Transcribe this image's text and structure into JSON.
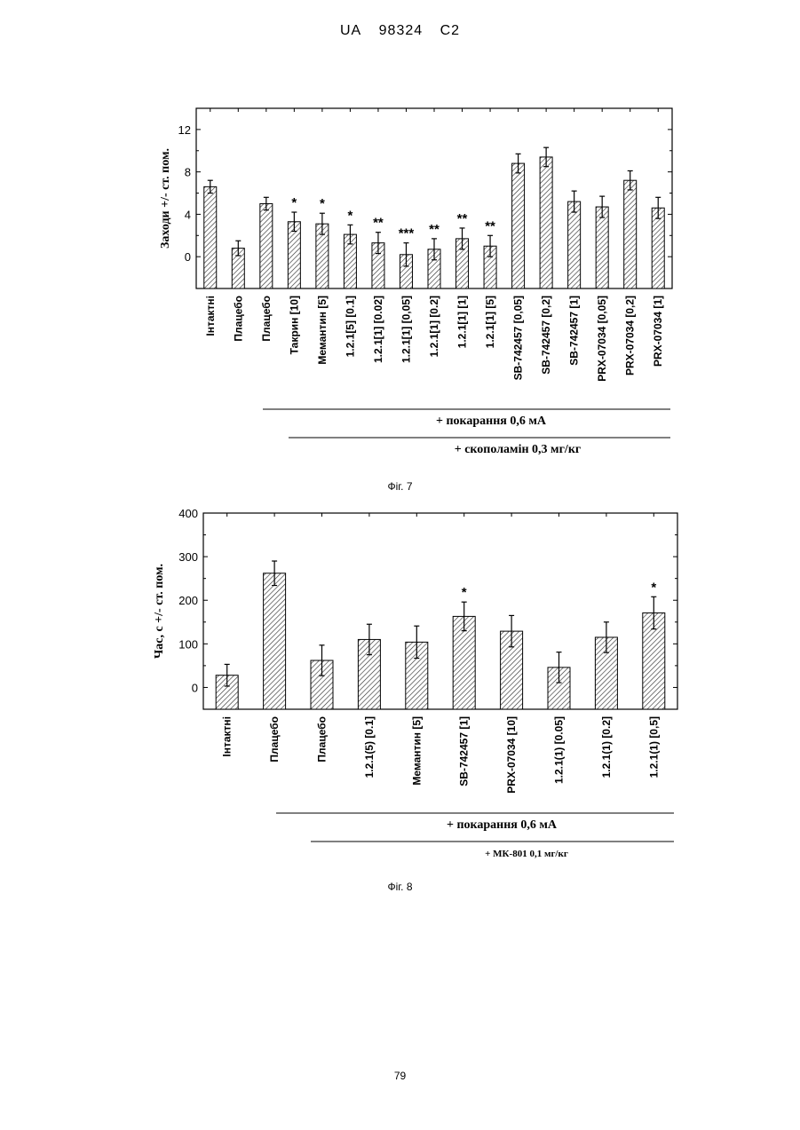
{
  "header": {
    "country": "UA",
    "number": "98324",
    "kind": "C2"
  },
  "page_number": "79",
  "figures": [
    {
      "caption": "Фіг. 7",
      "bracket1": "+ покарання 0,6 мА",
      "bracket2": "+ скополамін 0,3 мг/кг"
    },
    {
      "caption": "Фіг. 8",
      "bracket1": "+ покарання 0,6 мА",
      "bracket2": "+ МК-801  0,1 мг/кг"
    }
  ],
  "chart_data": [
    {
      "type": "bar",
      "ylabel": "Заходи +/- ст. пом.",
      "ylim": [
        -3,
        14
      ],
      "yticks": [
        0,
        4,
        8,
        12
      ],
      "categories": [
        "Інтактні",
        "Плацебо",
        "Плацебо",
        "Такрин [10]",
        "Мемантин [5]",
        "1.2.1[5] [0.1]",
        "1.2.1[1] [0.02]",
        "1.2.1[1] [0,05]",
        "1.2.1[1] [0.2]",
        "1.2.1[1] [1]",
        "1.2.1[1] [5]",
        "SB-742457 [0,05]",
        "SB-742457 [0,2]",
        "SB-742457 [1]",
        "PRX-07034 [0,05]",
        "PRX-07034 [0,2]",
        "PRX-07034 [1]"
      ],
      "values": [
        6.6,
        0.8,
        5.0,
        3.3,
        3.1,
        2.1,
        1.3,
        0.2,
        0.7,
        1.7,
        1.0,
        8.8,
        9.4,
        5.2,
        4.7,
        7.2,
        4.6
      ],
      "errors": [
        0.6,
        0.7,
        0.6,
        0.9,
        1.0,
        0.9,
        1.0,
        1.1,
        1.0,
        1.0,
        1.0,
        0.9,
        0.9,
        1.0,
        1.0,
        0.9,
        1.0
      ],
      "significance": [
        "",
        "",
        "",
        "*",
        "*",
        "*",
        "**",
        "***",
        "**",
        "**",
        "**",
        "",
        "",
        "",
        "",
        "",
        ""
      ],
      "grid": false
    },
    {
      "type": "bar",
      "ylabel": "Час, с +/- ст. пом.",
      "ylim": [
        -50,
        400
      ],
      "yticks": [
        0,
        100,
        200,
        300,
        400
      ],
      "categories": [
        "Інтактні",
        "Плацебо",
        "Плацебо",
        "1.2.1(5) [0.1]",
        "Мемантин [5]",
        "SB-742457 [1]",
        "PRX-07034 [10]",
        "1.2.1(1) [0.05]",
        "1.2.1(1) [0.2]",
        "1.2.1(1) [0,5]"
      ],
      "values": [
        28,
        262,
        62,
        110,
        104,
        163,
        129,
        46,
        115,
        171
      ],
      "errors": [
        25,
        28,
        35,
        35,
        37,
        33,
        36,
        35,
        35,
        37
      ],
      "significance": [
        "",
        "",
        "",
        "",
        "",
        "*",
        "",
        "",
        "",
        "*"
      ],
      "grid": false
    }
  ]
}
